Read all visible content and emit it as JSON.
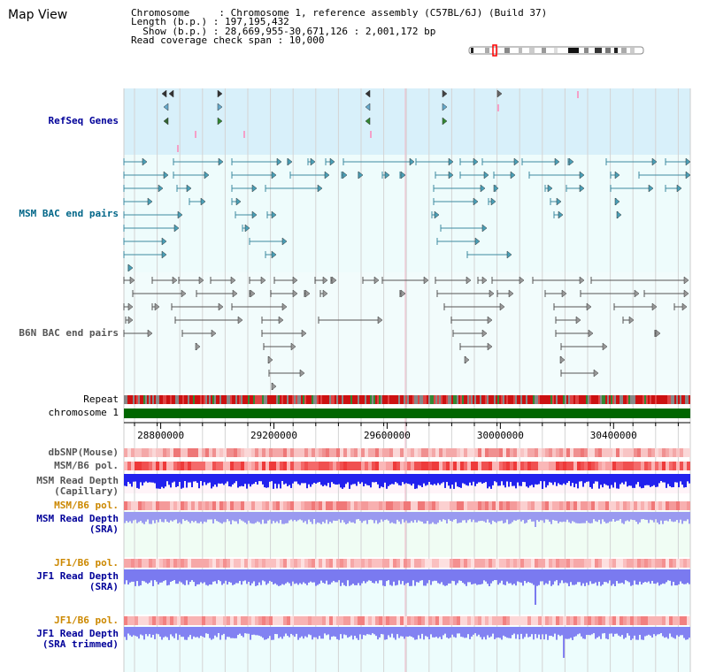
{
  "page": {
    "title": "Map View"
  },
  "info": {
    "line1": "Chromosome     : Chromosome 1, reference assembly (C57BL/6J) (Build 37)",
    "line2": "Length (b.p.) : 197,195,432",
    "line3": "  Show (b.p.) : 28,669,955-30,671,126 : 2,001,172 bp",
    "line4": "Read coverage check span : 10,000"
  },
  "tracks": {
    "refseq": "RefSeq Genes",
    "msm_bac": "MSM BAC end pairs",
    "b6n_bac": "B6N BAC end pairs",
    "repeat": "Repeat",
    "chromosome": "chromosome 1",
    "dbsnp": "dbSNP(Mouse)",
    "msm_b6_pol_cap": "MSM/B6 pol.",
    "msm_depth_cap_1": "MSM Read Depth",
    "msm_depth_cap_2": "(Capillary)",
    "msm_b6_pol_sra": "MSM/B6 pol.",
    "msm_depth_sra_1": "MSM Read Depth",
    "msm_depth_sra_2": "(SRA)",
    "jf1_b6_pol_sra": "JF1/B6 pol.",
    "jf1_depth_sra_1": "JF1 Read Depth",
    "jf1_depth_sra_2": "(SRA)",
    "jf1_b6_pol_trim": "JF1/B6 pol.",
    "jf1_depth_trim_1": "JF1 Read Depth",
    "jf1_depth_trim_2": "(SRA trimmed)"
  },
  "colors": {
    "refseq_bg": "#d8f0fa",
    "msm_bac_bg": "#eefcfc",
    "b6n_bac_bg": "#f2fcfc",
    "msm_label": "#006688",
    "gray_label": "#555555",
    "blue_label": "#000099",
    "orange_label": "#cc8800",
    "chromosome": "#006600",
    "refseq_label": "#000099"
  },
  "axis": {
    "start": 28669955,
    "end": 30671126,
    "ticks": [
      {
        "pos": 28800000,
        "label": "28800000"
      },
      {
        "pos": 29200000,
        "label": "29200000"
      },
      {
        "pos": 29600000,
        "label": "29600000"
      },
      {
        "pos": 30000000,
        "label": "30000000"
      },
      {
        "pos": 30400000,
        "label": "30400000"
      }
    ]
  }
}
